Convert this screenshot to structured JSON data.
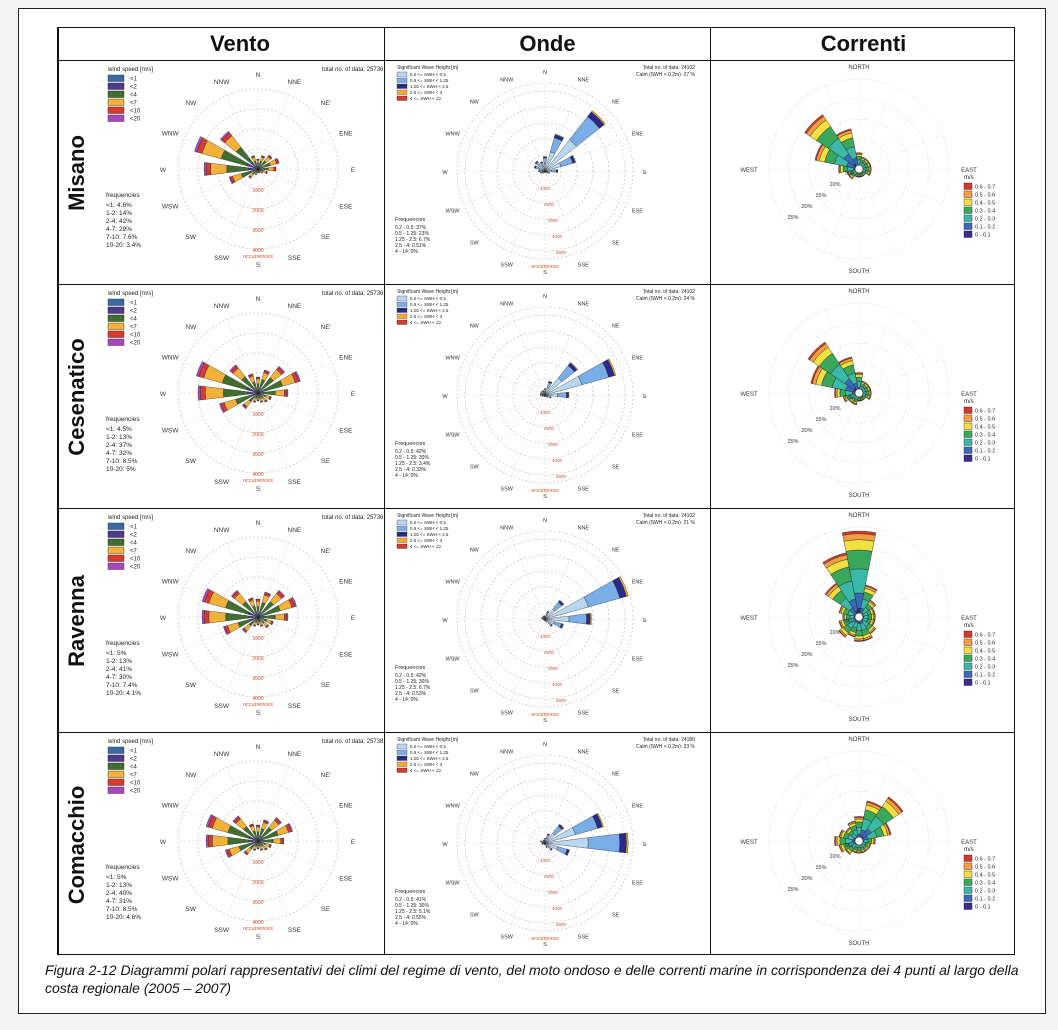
{
  "columns": [
    "Vento",
    "Onde",
    "Correnti"
  ],
  "rows": [
    "Misano",
    "Cesenatico",
    "Ravenna",
    "Comacchio"
  ],
  "caption": "Figura 2-12 Diagrammi polari rappresentativi dei climi del regime di vento, del moto ondoso e delle correnti marine in corrispondenza dei 4 punti al largo della costa regionale (2005 – 2007)",
  "wind_legend": {
    "title": "wind speed [m/s]",
    "classes": [
      "<1",
      "<2",
      "<4",
      "<7",
      "<10",
      "<20"
    ],
    "colors": [
      "#3a6aa8",
      "#4a3a90",
      "#3f6e30",
      "#f2b23a",
      "#d83a30",
      "#a848c0"
    ]
  },
  "wave_legend": {
    "title": "Significant Wave Height [m]",
    "classes": [
      "0.2 <= SWH < 0.5",
      "0.5 <= SWH < 1.25",
      "1.25 <= SWH < 2.5",
      "2.5 <= SWH < 4",
      "4 <= SWH < 14"
    ],
    "colors": [
      "#b8d8f2",
      "#7aaee8",
      "#2a2a8a",
      "#f2b23a",
      "#d83a30"
    ]
  },
  "current_legend": {
    "title": "m/s",
    "classes": [
      "0.6 - 0.7",
      "0.5 - 0.6",
      "0.4 - 0.5",
      "0.3 - 0.4",
      "0.2 - 0.3",
      "0.1 - 0.2",
      "0 - 0.1"
    ],
    "colors": [
      "#d83a30",
      "#f0a040",
      "#f2e040",
      "#3aa85a",
      "#3ab8a8",
      "#3a6ab8",
      "#3a2a8a"
    ]
  },
  "compass16": [
    "N",
    "NNE",
    "NE",
    "ENE",
    "E",
    "ESE",
    "SE",
    "SSE",
    "S",
    "SSW",
    "SW",
    "WSW",
    "W",
    "WNW",
    "NW",
    "NNW"
  ],
  "compass_current": [
    "NORTH",
    "EAST",
    "SOUTH",
    "WEST"
  ],
  "current_rings": [
    "5%",
    "10%",
    "15%",
    "20%",
    "25%"
  ],
  "wind_ring_labels": [
    "1000",
    "2000",
    "3000",
    "4000"
  ],
  "wave_ring_labels": [
    "1000",
    "2000",
    "3000",
    "4000",
    "5000"
  ],
  "chart_data": [
    {
      "type": "polar-bar",
      "title": "Vento — Misano",
      "total": "total no. of data: 25736",
      "frequencies_title": "frequencies",
      "frequencies": [
        "<1: 4.6%",
        "1-2: 14%",
        "2-4: 42%",
        "4-7: 29%",
        "7-10: 7.6%",
        "10-20: 3.4%"
      ],
      "occurrences_label": "occurrences",
      "directions": [
        "N",
        "NNE",
        "NE",
        "ENE",
        "E",
        "ESE",
        "SE",
        "SSE",
        "S",
        "SSW",
        "SW",
        "WSW",
        "W",
        "WNW",
        "NW",
        "NNW"
      ],
      "values": [
        500,
        700,
        900,
        1100,
        900,
        500,
        300,
        200,
        200,
        300,
        600,
        1500,
        2700,
        3300,
        2400,
        700
      ]
    },
    {
      "type": "polar-bar",
      "title": "Vento — Cesenatico",
      "total": "total no. of data: 25736",
      "frequencies_title": "frequencies",
      "frequencies": [
        "<1: 4.5%",
        "1-2: 13%",
        "2-4: 37%",
        "4-7: 32%",
        "7-10: 8.5%",
        "10-20: 5%"
      ],
      "occurrences_label": "occurrences",
      "directions": [
        "N",
        "NNE",
        "NE",
        "ENE",
        "E",
        "ESE",
        "SE",
        "SSE",
        "S",
        "SSW",
        "SW",
        "WSW",
        "W",
        "WNW",
        "NW",
        "NNW"
      ],
      "values": [
        800,
        1200,
        1700,
        2200,
        1500,
        700,
        600,
        500,
        400,
        500,
        1000,
        2000,
        3000,
        3200,
        1800,
        1000
      ]
    },
    {
      "type": "polar-bar",
      "title": "Vento — Ravenna",
      "total": "total no. of data: 25736",
      "frequencies_title": "frequencies",
      "frequencies": [
        "<1: 5%",
        "1-2: 13%",
        "2-4: 41%",
        "4-7: 30%",
        "7-10: 7.4%",
        "10-20: 4.1%"
      ],
      "occurrences_label": "occurrences",
      "directions": [
        "N",
        "NNE",
        "NE",
        "ENE",
        "E",
        "ESE",
        "SE",
        "SSE",
        "S",
        "SSW",
        "SW",
        "WSW",
        "W",
        "WNW",
        "NW",
        "NNW"
      ],
      "values": [
        900,
        1300,
        1700,
        2000,
        1500,
        800,
        700,
        500,
        400,
        500,
        1000,
        1800,
        2800,
        2900,
        1700,
        1000
      ]
    },
    {
      "type": "polar-bar",
      "title": "Vento — Comacchio",
      "total": "total no. of data: 25738",
      "frequencies_title": "frequencies",
      "frequencies": [
        "<1: 5%",
        "1-2: 13%",
        "2-4: 40%",
        "4-7: 31%",
        "7-10: 8.5%",
        "10-20: 4.6%"
      ],
      "occurrences_label": "occurrences",
      "directions": [
        "N",
        "NNE",
        "NE",
        "ENE",
        "E",
        "ESE",
        "SE",
        "SSE",
        "S",
        "SSW",
        "SW",
        "WSW",
        "W",
        "WNW",
        "NW",
        "NNW"
      ],
      "values": [
        800,
        1100,
        1500,
        1800,
        1300,
        700,
        600,
        500,
        400,
        500,
        900,
        1700,
        2600,
        2700,
        1600,
        900
      ]
    },
    {
      "type": "polar-bar",
      "title": "Onde — Misano",
      "total": "Total no. of data: 24102",
      "calm": "Calm (SWH < 0.2m): 27 %",
      "frequencies_title": "Frequencies",
      "frequencies": [
        "0.2 - 0.5: 37%",
        "0.5 - 1.25: 23%",
        "1.25 - 2.5: 6.7%",
        "2.5 - 4: 0.51%",
        "4 - 14: 0%"
      ],
      "occurrences_label": "occurrences",
      "directions": [
        "N",
        "NNE",
        "NE",
        "ENE",
        "E",
        "ESE",
        "SE",
        "SSE",
        "S",
        "SSW",
        "SW",
        "WSW",
        "W",
        "WNW",
        "NW",
        "NNW"
      ],
      "values": [
        900,
        2400,
        4800,
        2000,
        800,
        300,
        200,
        100,
        100,
        100,
        200,
        300,
        400,
        700,
        800,
        600
      ]
    },
    {
      "type": "polar-bar",
      "title": "Onde — Cesenatico",
      "total": "Total no. of data: 24102",
      "calm": "Calm (SWH < 0.2m): 24 %",
      "frequencies_title": "Frequencies",
      "frequencies": [
        "0.2 - 0.5: 42%",
        "0.5 - 1.25: 30%",
        "1.25 - 2.5: 3.4%",
        "2.5 - 4: 0.33%",
        "4 - 14: 0%"
      ],
      "occurrences_label": "occurrences",
      "directions": [
        "N",
        "NNE",
        "NE",
        "ENE",
        "E",
        "ESE",
        "SE",
        "SSE",
        "S",
        "SSW",
        "SW",
        "WSW",
        "W",
        "WNW",
        "NW",
        "NNW"
      ],
      "values": [
        400,
        900,
        2600,
        4600,
        1500,
        400,
        200,
        100,
        100,
        100,
        100,
        200,
        300,
        300,
        300,
        300
      ]
    },
    {
      "type": "polar-bar",
      "title": "Onde — Ravenna",
      "total": "Total no. of data: 24102",
      "calm": "Calm (SWH < 0.2m): 21 %",
      "frequencies_title": "Frequencies",
      "frequencies": [
        "0.2 - 0.5: 42%",
        "0.5 - 1.25: 30%",
        "1.25 - 2.5: 6.7%",
        "2.5 - 4: 0.53%",
        "4 - 14: 0%"
      ],
      "occurrences_label": "occurrences",
      "directions": [
        "N",
        "NNE",
        "NE",
        "ENE",
        "E",
        "ESE",
        "SE",
        "SSE",
        "S",
        "SSW",
        "SW",
        "WSW",
        "W",
        "WNW",
        "NW",
        "NNW"
      ],
      "values": [
        200,
        500,
        1500,
        5400,
        2900,
        1200,
        600,
        200,
        100,
        100,
        100,
        100,
        200,
        200,
        200,
        200
      ]
    },
    {
      "type": "polar-bar",
      "title": "Onde — Comacchio",
      "total": "Total no. of data: 24180",
      "calm": "Calm (SWH < 0.2m): 23 %",
      "frequencies_title": "Frequencies",
      "frequencies": [
        "0.2 - 0.5: 41%",
        "0.5 - 1.25: 30%",
        "1.25 - 2.5: 5.1%",
        "2.5 - 4: 0.55%",
        "4 - 14: 0%"
      ],
      "occurrences_label": "occurrences",
      "directions": [
        "N",
        "NNE",
        "NE",
        "ENE",
        "E",
        "ESE",
        "SE",
        "SSE",
        "S",
        "SSW",
        "SW",
        "WSW",
        "W",
        "WNW",
        "NW",
        "NNW"
      ],
      "values": [
        300,
        600,
        1500,
        3800,
        5200,
        1600,
        600,
        300,
        100,
        100,
        100,
        200,
        200,
        300,
        200,
        200
      ]
    },
    {
      "type": "polar-bar",
      "title": "Correnti — Misano",
      "unit": "%",
      "directions": [
        "N",
        "NNE",
        "NE",
        "ENE",
        "E",
        "ESE",
        "SE",
        "SSE",
        "S",
        "SSW",
        "SW",
        "WSW",
        "W",
        "WNW",
        "NW",
        "NNW"
      ],
      "values": [
        4,
        3,
        3,
        3,
        3,
        3,
        2,
        2,
        2,
        2,
        3,
        3,
        5,
        11,
        16,
        10
      ]
    },
    {
      "type": "polar-bar",
      "title": "Correnti — Cesenatico",
      "unit": "%",
      "directions": [
        "N",
        "NNE",
        "NE",
        "ENE",
        "E",
        "ESE",
        "SE",
        "SSE",
        "S",
        "SSW",
        "SW",
        "WSW",
        "W",
        "WNW",
        "NW",
        "NNW"
      ],
      "values": [
        5,
        3,
        3,
        3,
        3,
        3,
        2,
        2,
        2,
        3,
        3,
        4,
        6,
        12,
        15,
        9
      ]
    },
    {
      "type": "polar-bar",
      "title": "Correnti — Ravenna",
      "unit": "%",
      "directions": [
        "N",
        "NNE",
        "NE",
        "ENE",
        "E",
        "ESE",
        "SE",
        "SSE",
        "S",
        "SSW",
        "SW",
        "WSW",
        "W",
        "WNW",
        "NW",
        "NNW"
      ],
      "values": [
        21,
        8,
        5,
        4,
        4,
        4,
        5,
        6,
        6,
        5,
        6,
        5,
        4,
        5,
        10,
        16
      ]
    },
    {
      "type": "polar-bar",
      "title": "Correnti — Comacchio",
      "unit": "%",
      "directions": [
        "N",
        "NNE",
        "NE",
        "ENE",
        "E",
        "ESE",
        "SE",
        "SSE",
        "S",
        "SSW",
        "SW",
        "WSW",
        "W",
        "WNW",
        "NW",
        "NNW"
      ],
      "values": [
        6,
        10,
        13,
        8,
        4,
        3,
        3,
        3,
        3,
        3,
        4,
        5,
        6,
        5,
        4,
        5
      ]
    }
  ]
}
